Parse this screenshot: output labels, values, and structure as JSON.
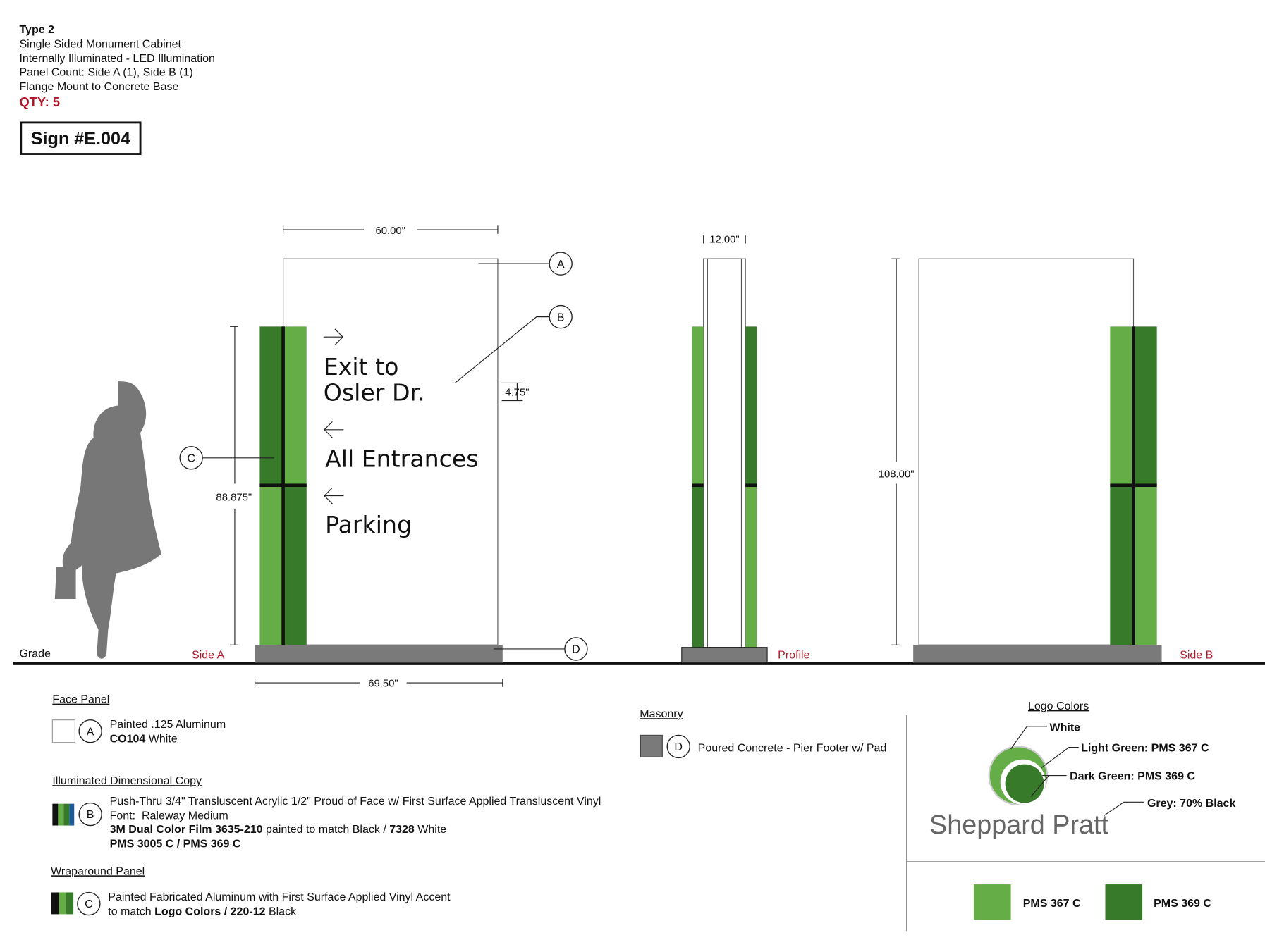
{
  "header": {
    "type": "Type 2",
    "lines": [
      "Single Sided Monument Cabinet",
      "Internally Illuminated - LED Illumination",
      "Panel Count: Side A (1), Side B (1)",
      "Flange Mount to Concrete Base"
    ],
    "qty": "QTY: 5",
    "sign_id": "Sign #E.004"
  },
  "callouts": [
    "A",
    "B",
    "C",
    "D"
  ],
  "dimensions": {
    "width_panel": "60.00\"",
    "depth": "12.00\"",
    "letter_height": "4.75\"",
    "column_height": "88.875\"",
    "overall_height": "108.00\"",
    "base_width": "69.50\""
  },
  "labels": {
    "grade": "Grade",
    "side_a": "Side A",
    "profile": "Profile",
    "side_b": "Side B"
  },
  "sign_copy": [
    "Exit to",
    "Osler Dr.",
    "All Entrances",
    "Parking"
  ],
  "legend": {
    "face_panel": {
      "title": "Face Panel",
      "line1": "Painted .125 Aluminum",
      "line2_bold": "CO104",
      "line2_rest": " White"
    },
    "copy": {
      "title": "Illuminated Dimensional Copy",
      "line1": "Push-Thru 3/4\" Transluscent Acrylic 1/2\" Proud of Face w/ First Surface Applied Transluscent Vinyl",
      "line2": "Font:  Raleway Medium",
      "line3": [
        "3M Dual Color Film 3635-210",
        " painted to match Black / ",
        "7328",
        " White"
      ],
      "line4": "PMS 3005 C / PMS 369 C"
    },
    "wrap": {
      "title": "Wraparound Panel",
      "line1": "Painted Fabricated Aluminum with First Surface Applied Vinyl Accent",
      "line2": [
        "to match ",
        "Logo Colors / 220-12",
        " Black"
      ]
    },
    "masonry": {
      "title": "Masonry",
      "line1": "Poured Concrete - Pier Footer w/ Pad"
    }
  },
  "logo": {
    "title": "Logo Colors",
    "white": "White",
    "light": "Light Green: PMS 367 C",
    "dark": "Dark Green: PMS 369 C",
    "grey": "Grey: 70% Black",
    "name": "Sheppard Pratt",
    "swatch1": "PMS 367 C",
    "swatch2": "PMS 369 C"
  }
}
